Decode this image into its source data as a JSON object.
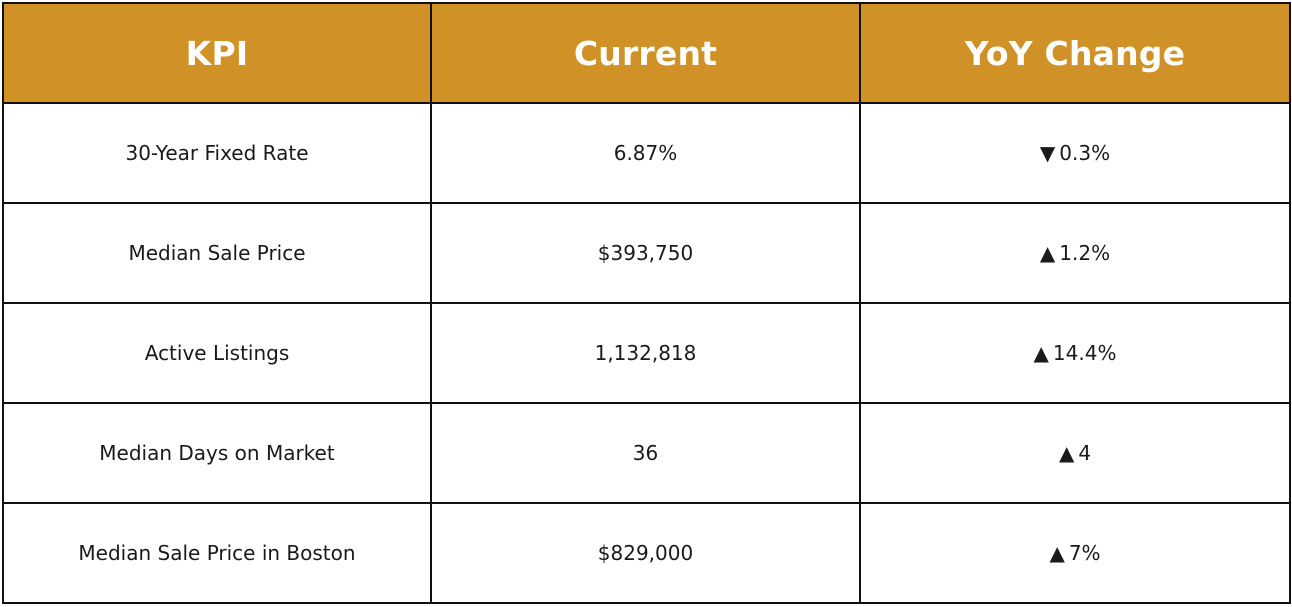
{
  "chart_data": {
    "type": "table",
    "columns": [
      "KPI",
      "Current",
      "YoY Change"
    ],
    "rows": [
      {
        "kpi": "30-Year Fixed Rate",
        "current": "6.87%",
        "direction": "down",
        "arrow": "▼",
        "change": "0.3%"
      },
      {
        "kpi": "Median Sale Price",
        "current": "$393,750",
        "direction": "up",
        "arrow": "▲",
        "change": "1.2%"
      },
      {
        "kpi": "Active Listings",
        "current": "1,132,818",
        "direction": "up",
        "arrow": "▲",
        "change": "14.4%"
      },
      {
        "kpi": "Median Days on Market",
        "current": "36",
        "direction": "up",
        "arrow": "▲",
        "change": "4"
      },
      {
        "kpi": "Median Sale Price in Boston",
        "current": "$829,000",
        "direction": "up",
        "arrow": "▲",
        "change": "7%"
      }
    ]
  },
  "colors": {
    "header_background": "#d09226",
    "header_text": "#ffffff",
    "border": "#111111",
    "body_text": "#1a1a1a"
  }
}
